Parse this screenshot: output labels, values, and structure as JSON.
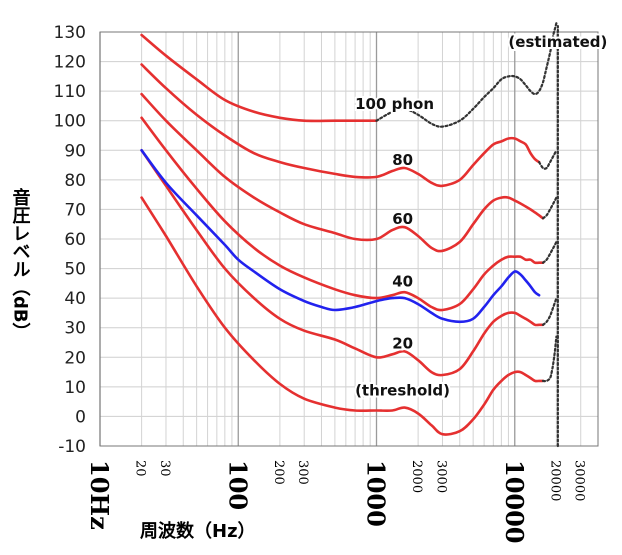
{
  "chart_data": {
    "type": "line",
    "title": "",
    "xlabel": "周波数（Hz）",
    "ylabel": "音圧レベル（dB）",
    "xscale": "log",
    "xlim": [
      20,
      40000
    ],
    "ylim": [
      -10,
      130
    ],
    "yticks": [
      130,
      120,
      110,
      100,
      90,
      80,
      70,
      60,
      50,
      40,
      30,
      20,
      10,
      0,
      -10
    ],
    "xtick_labels": [
      {
        "value": 10,
        "label": "10Hz",
        "size": "big"
      },
      {
        "value": 20,
        "label": "20",
        "size": "small"
      },
      {
        "value": 30,
        "label": "30",
        "size": "small"
      },
      {
        "value": 100,
        "label": "100",
        "size": "big"
      },
      {
        "value": 200,
        "label": "200",
        "size": "small"
      },
      {
        "value": 300,
        "label": "300",
        "size": "small"
      },
      {
        "value": 1000,
        "label": "1000",
        "size": "big"
      },
      {
        "value": 2000,
        "label": "2000",
        "size": "small"
      },
      {
        "value": 3000,
        "label": "3000",
        "size": "small"
      },
      {
        "value": 10000,
        "label": "10000",
        "size": "big"
      },
      {
        "value": 20000,
        "label": "20000",
        "size": "small"
      },
      {
        "value": 30000,
        "label": "30000",
        "size": "small"
      }
    ],
    "series": [
      {
        "name": "100 phon",
        "color": "#e53030",
        "style": "solid",
        "x": [
          20,
          30,
          50,
          80,
          130,
          200,
          300,
          500,
          700,
          1000
        ],
        "y": [
          129,
          122,
          114,
          107,
          103,
          101,
          100,
          100,
          100,
          100
        ]
      },
      {
        "name": "100 phon (estimated)",
        "color": "#333333",
        "style": "dotted",
        "x": [
          1000,
          1300,
          1600,
          2000,
          2500,
          3000,
          4000,
          5000,
          6000,
          7000,
          8000,
          9000,
          10000,
          11000,
          12000,
          13000,
          14000,
          15000,
          16000,
          17000,
          18000,
          18500,
          19000,
          19500,
          20000
        ],
        "y": [
          100,
          103,
          104,
          102,
          99,
          98,
          100,
          104,
          108,
          111,
          114,
          115,
          115,
          114,
          112,
          110,
          109,
          110,
          113,
          118,
          123,
          126,
          129,
          131,
          133
        ]
      },
      {
        "name": "80",
        "color": "#e53030",
        "style": "solid",
        "x": [
          20,
          30,
          50,
          80,
          130,
          200,
          300,
          500,
          700,
          1000,
          1300,
          1600,
          2000,
          2500,
          3000,
          4000,
          5000,
          6000,
          7000,
          8000,
          9000,
          10000,
          11000,
          12000,
          13000,
          14000,
          15000
        ],
        "y": [
          119,
          111,
          102,
          95,
          89,
          86,
          84,
          82,
          81,
          81,
          83,
          84,
          82,
          79,
          78,
          80,
          85,
          89,
          92,
          93,
          94,
          94,
          93,
          92,
          89,
          87,
          86
        ]
      },
      {
        "name": "80 (estimated)",
        "color": "#333333",
        "style": "dotted",
        "x": [
          15000,
          16000,
          17000,
          18000,
          19000,
          20000
        ],
        "y": [
          86,
          84,
          84,
          86,
          88,
          90
        ]
      },
      {
        "name": "60",
        "color": "#e53030",
        "style": "solid",
        "x": [
          20,
          30,
          50,
          80,
          130,
          200,
          300,
          500,
          700,
          1000,
          1300,
          1600,
          2000,
          2500,
          3000,
          4000,
          5000,
          6000,
          7000,
          8000,
          9000,
          10000,
          11000,
          12000,
          13000,
          14000,
          15000,
          16000
        ],
        "y": [
          109,
          100,
          90,
          81,
          74,
          69,
          65,
          62,
          60,
          60,
          63,
          64,
          61,
          57,
          56,
          59,
          65,
          70,
          73,
          74,
          74,
          73,
          72,
          71,
          70,
          69,
          68,
          67
        ]
      },
      {
        "name": "60 (estimated)",
        "color": "#333333",
        "style": "dotted",
        "x": [
          16000,
          17000,
          18000,
          19000,
          20000
        ],
        "y": [
          67,
          68,
          70,
          72,
          74
        ]
      },
      {
        "name": "40",
        "color": "#e53030",
        "style": "solid",
        "x": [
          20,
          30,
          50,
          80,
          130,
          200,
          300,
          500,
          700,
          1000,
          1300,
          1600,
          2000,
          2500,
          3000,
          4000,
          5000,
          6000,
          7000,
          8000,
          9000,
          10000,
          11000,
          12000,
          13000,
          14000,
          15000,
          16000
        ],
        "y": [
          101,
          90,
          77,
          66,
          57,
          51,
          47,
          43,
          41,
          40,
          41,
          42,
          40,
          37,
          36,
          38,
          43,
          48,
          51,
          53,
          54,
          54,
          54,
          53,
          53,
          52,
          52,
          52
        ]
      },
      {
        "name": "40 (estimated)",
        "color": "#333333",
        "style": "dotted",
        "x": [
          16000,
          17000,
          18000,
          19000,
          20000
        ],
        "y": [
          52,
          53,
          55,
          57,
          59
        ]
      },
      {
        "name": "20",
        "color": "#e53030",
        "style": "solid",
        "x": [
          20,
          30,
          50,
          80,
          130,
          200,
          300,
          500,
          700,
          1000,
          1300,
          1600,
          2000,
          2500,
          3000,
          4000,
          5000,
          6000,
          7000,
          8000,
          9000,
          10000,
          11000,
          12000,
          13000,
          14000,
          15000,
          16000
        ],
        "y": [
          90,
          78,
          63,
          50,
          40,
          33,
          29,
          26,
          23,
          20,
          21,
          22,
          19,
          15,
          14,
          16,
          22,
          28,
          32,
          34,
          35,
          35,
          34,
          33,
          32,
          31,
          31,
          31
        ]
      },
      {
        "name": "20 (estimated)",
        "color": "#333333",
        "style": "dotted",
        "x": [
          16000,
          17000,
          18000,
          19000,
          20000
        ],
        "y": [
          31,
          32,
          34,
          37,
          40
        ]
      },
      {
        "name": "threshold",
        "color": "#e53030",
        "style": "solid",
        "x": [
          20,
          30,
          50,
          80,
          130,
          200,
          300,
          500,
          700,
          1000,
          1300,
          1600,
          2000,
          2500,
          3000,
          4000,
          5000,
          6000,
          7000,
          8000,
          9000,
          10000,
          11000,
          12000,
          13000,
          14000,
          15000,
          16000
        ],
        "y": [
          74,
          61,
          44,
          30,
          19,
          11,
          6,
          3,
          2,
          2,
          2,
          3,
          1,
          -3,
          -6,
          -5,
          -1,
          4,
          9,
          12,
          14,
          15,
          15,
          14,
          13,
          12,
          12,
          12
        ]
      },
      {
        "name": "threshold (estimated)",
        "color": "#333333",
        "style": "dotted",
        "x": [
          16000,
          17000,
          18000,
          18500,
          19000,
          19500,
          20000
        ],
        "y": [
          12,
          12,
          13,
          15,
          18,
          22,
          27
        ]
      },
      {
        "name": "comparison curve",
        "color": "#2222ee",
        "style": "solid",
        "x": [
          20,
          30,
          50,
          80,
          100,
          130,
          200,
          300,
          400,
          500,
          700,
          1000,
          1300,
          1600,
          2000,
          2500,
          3000,
          4000,
          5000,
          6000,
          7000,
          8000,
          9000,
          10000,
          11000,
          12000,
          13000,
          14000,
          15000
        ],
        "y": [
          90,
          79,
          68,
          58,
          53,
          49,
          43,
          39,
          37,
          36,
          37,
          39,
          40,
          40,
          38,
          35,
          33,
          32,
          33,
          37,
          41,
          44,
          47,
          49,
          48,
          46,
          44,
          42,
          41
        ]
      },
      {
        "name": "20000 Hz dotted edge",
        "color": "#333333",
        "style": "dotted",
        "x": [
          20500,
          20500
        ],
        "y": [
          -10,
          132
        ]
      }
    ],
    "annotations": [
      {
        "text": "(estimated)",
        "x": 9000,
        "y": 125
      },
      {
        "text": "100 phon",
        "x": 700,
        "y": 104
      },
      {
        "text": "80",
        "x": 1300,
        "y": 85
      },
      {
        "text": "60",
        "x": 1300,
        "y": 65
      },
      {
        "text": "40",
        "x": 1300,
        "y": 44
      },
      {
        "text": "20",
        "x": 1300,
        "y": 23
      },
      {
        "text": "(threshold)",
        "x": 700,
        "y": 7
      }
    ]
  }
}
